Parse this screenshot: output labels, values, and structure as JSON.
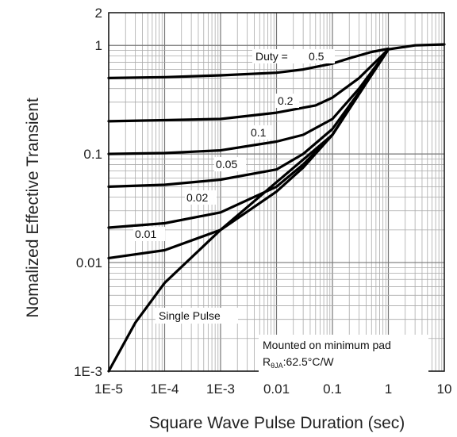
{
  "chart_data": {
    "type": "line",
    "xlabel": "Square Wave Pulse Duration (sec)",
    "ylabel": "Nomalized Effective Transient",
    "xscale": "log",
    "yscale": "log",
    "xlim": [
      1e-05,
      10
    ],
    "ylim": [
      0.001,
      2
    ],
    "grid": true,
    "x_tick_labels": [
      "1E-5",
      "1E-4",
      "1E-3",
      "0.01",
      "0.1",
      "1",
      "10"
    ],
    "y_tick_labels": [
      "1E-3",
      "0.01",
      "0.1",
      "1",
      "2"
    ],
    "duty_prefix": "Duty =",
    "series": [
      {
        "name": "0.5",
        "x": [
          1e-05,
          0.0001,
          0.001,
          0.01,
          0.03,
          0.1,
          0.2,
          0.5,
          1
        ],
        "y": [
          0.5,
          0.51,
          0.53,
          0.56,
          0.6,
          0.68,
          0.76,
          0.87,
          0.93
        ]
      },
      {
        "name": "0.2",
        "x": [
          1e-05,
          0.0001,
          0.001,
          0.01,
          0.05,
          0.1,
          0.3,
          1
        ],
        "y": [
          0.2,
          0.205,
          0.21,
          0.24,
          0.28,
          0.33,
          0.5,
          0.92
        ]
      },
      {
        "name": "0.1",
        "x": [
          1e-05,
          0.0001,
          0.001,
          0.01,
          0.03,
          0.1,
          0.3,
          1
        ],
        "y": [
          0.1,
          0.102,
          0.108,
          0.13,
          0.15,
          0.21,
          0.4,
          0.92
        ]
      },
      {
        "name": "0.05",
        "x": [
          1e-05,
          0.0001,
          0.001,
          0.01,
          0.03,
          0.1,
          0.3,
          1
        ],
        "y": [
          0.05,
          0.052,
          0.058,
          0.072,
          0.1,
          0.17,
          0.37,
          0.92
        ]
      },
      {
        "name": "0.02",
        "x": [
          1e-05,
          0.0001,
          0.001,
          0.01,
          0.03,
          0.1,
          0.3,
          1
        ],
        "y": [
          0.021,
          0.023,
          0.029,
          0.05,
          0.08,
          0.15,
          0.36,
          0.92
        ]
      },
      {
        "name": "0.01",
        "x": [
          1e-05,
          0.0001,
          0.001,
          0.01,
          0.03,
          0.1,
          0.3,
          1
        ],
        "y": [
          0.011,
          0.013,
          0.02,
          0.045,
          0.075,
          0.15,
          0.36,
          0.92
        ]
      },
      {
        "name": "Single Pulse",
        "x": [
          1e-05,
          3e-05,
          0.0001,
          0.001,
          0.01,
          0.1,
          1,
          3,
          10
        ],
        "y": [
          0.001,
          0.0028,
          0.0065,
          0.02,
          0.055,
          0.15,
          0.92,
          1.0,
          1.02
        ]
      }
    ],
    "note_line1": "Mounted on minimum pad",
    "note_rth": "R",
    "note_rth_sub": "θJA",
    "note_rth_value": ":62.5°C/W"
  }
}
